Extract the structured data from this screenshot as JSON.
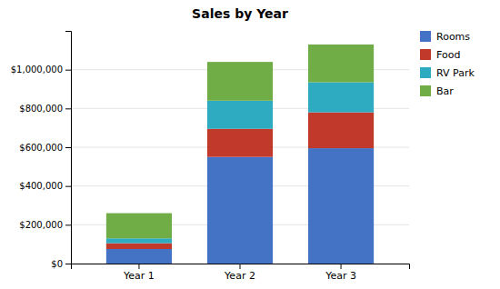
{
  "chart_data": {
    "type": "bar",
    "title": "Sales by Year",
    "categories": [
      "Year 1",
      "Year 2",
      "Year 3"
    ],
    "stacked": true,
    "series": [
      {
        "name": "Rooms",
        "color": "#4472c4",
        "values": [
          75000,
          550000,
          595000
        ]
      },
      {
        "name": "Food",
        "color": "#c0392b",
        "values": [
          30000,
          145000,
          185000
        ]
      },
      {
        "name": "RV Park",
        "color": "#2eaac1",
        "values": [
          25000,
          145000,
          155000
        ]
      },
      {
        "name": "Bar",
        "color": "#70ad47",
        "values": [
          130000,
          200000,
          195000
        ]
      }
    ],
    "ylim": [
      0,
      1200000
    ],
    "yticks": [
      {
        "value": 0,
        "label": "$0"
      },
      {
        "value": 200000,
        "label": "$200,000"
      },
      {
        "value": 400000,
        "label": "$400,000"
      },
      {
        "value": 600000,
        "label": "$600,000"
      },
      {
        "value": 800000,
        "label": "$800,000"
      },
      {
        "value": 1000000,
        "label": "$1,000,000"
      }
    ],
    "grid": true,
    "legend": "right"
  }
}
